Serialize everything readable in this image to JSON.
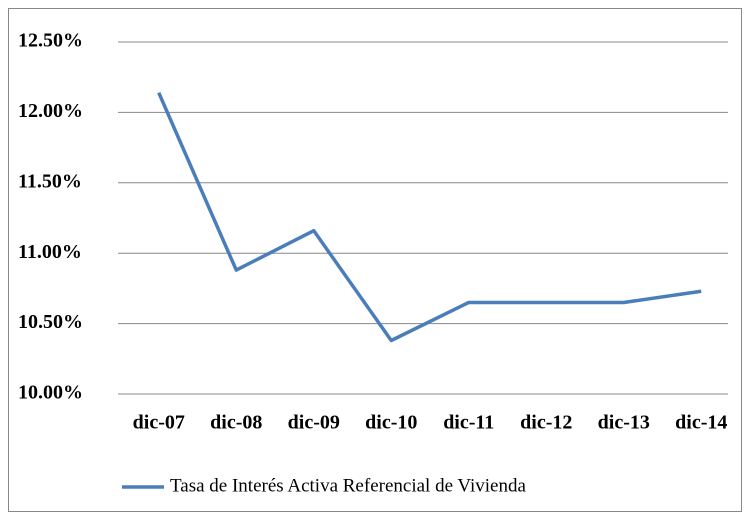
{
  "chart_data": {
    "type": "line",
    "categories": [
      "dic-07",
      "dic-08",
      "dic-09",
      "dic-10",
      "dic-11",
      "dic-12",
      "dic-13",
      "dic-14"
    ],
    "series": [
      {
        "name": "Tasa de Interés Activa Referencial de Vivienda",
        "color": "#4a7ebb",
        "values": [
          12.14,
          10.88,
          11.16,
          10.38,
          10.65,
          10.65,
          10.65,
          10.73
        ]
      }
    ],
    "ylim": [
      10,
      12.5
    ],
    "yticks": [
      {
        "value": 10,
        "label": "10.00%"
      },
      {
        "value": 10.5,
        "label": "10.50%"
      },
      {
        "value": 11,
        "label": "11.00%"
      },
      {
        "value": 11.5,
        "label": "11.50%"
      },
      {
        "value": 12,
        "label": "12.00%"
      },
      {
        "value": 12.5,
        "label": "12.50%"
      }
    ],
    "grid": true,
    "legend": "bottom"
  }
}
